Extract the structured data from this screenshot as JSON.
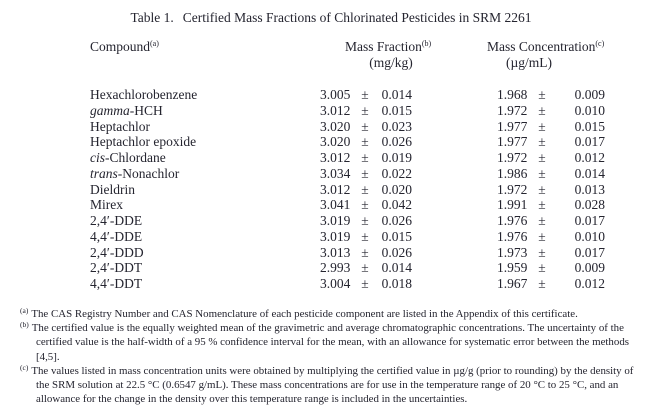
{
  "title": {
    "label": "Table 1.",
    "text": "Certified Mass Fractions of Chlorinated Pesticides in SRM 2261"
  },
  "columns": {
    "compound": {
      "label": "Compound",
      "sup": "(a)"
    },
    "mass_fraction": {
      "label": "Mass Fraction",
      "sup": "(b)",
      "unit": "(mg/kg)"
    },
    "mass_concentration": {
      "label": "Mass Concentration",
      "sup": "(c)",
      "unit": "(µg/mL)"
    }
  },
  "plus_minus": "±",
  "rows": [
    {
      "italic": "",
      "name": "Hexachlorobenzene",
      "mass_fraction": "3.005",
      "mass_fraction_unc": "0.014",
      "mass_concentration": "1.968",
      "mass_concentration_unc": "0.009"
    },
    {
      "italic": "gamma",
      "name": "-HCH",
      "mass_fraction": "3.012",
      "mass_fraction_unc": "0.015",
      "mass_concentration": "1.972",
      "mass_concentration_unc": "0.010"
    },
    {
      "italic": "",
      "name": "Heptachlor",
      "mass_fraction": "3.020",
      "mass_fraction_unc": "0.023",
      "mass_concentration": "1.977",
      "mass_concentration_unc": "0.015"
    },
    {
      "italic": "",
      "name": "Heptachlor epoxide",
      "mass_fraction": "3.020",
      "mass_fraction_unc": "0.026",
      "mass_concentration": "1.977",
      "mass_concentration_unc": "0.017"
    },
    {
      "italic": "cis",
      "name": "-Chlordane",
      "mass_fraction": "3.012",
      "mass_fraction_unc": "0.019",
      "mass_concentration": "1.972",
      "mass_concentration_unc": "0.012"
    },
    {
      "italic": "trans",
      "name": "-Nonachlor",
      "mass_fraction": "3.034",
      "mass_fraction_unc": "0.022",
      "mass_concentration": "1.986",
      "mass_concentration_unc": "0.014"
    },
    {
      "italic": "",
      "name": "Dieldrin",
      "mass_fraction": "3.012",
      "mass_fraction_unc": "0.020",
      "mass_concentration": "1.972",
      "mass_concentration_unc": "0.013"
    },
    {
      "italic": "",
      "name": "Mirex",
      "mass_fraction": "3.041",
      "mass_fraction_unc": "0.042",
      "mass_concentration": "1.991",
      "mass_concentration_unc": "0.028"
    },
    {
      "italic": "",
      "name": "2,4′-DDE",
      "mass_fraction": "3.019",
      "mass_fraction_unc": "0.026",
      "mass_concentration": "1.976",
      "mass_concentration_unc": "0.017"
    },
    {
      "italic": "",
      "name": "4,4′-DDE",
      "mass_fraction": "3.019",
      "mass_fraction_unc": "0.015",
      "mass_concentration": "1.976",
      "mass_concentration_unc": "0.010"
    },
    {
      "italic": "",
      "name": "2,4′-DDD",
      "mass_fraction": "3.013",
      "mass_fraction_unc": "0.026",
      "mass_concentration": "1.973",
      "mass_concentration_unc": "0.017"
    },
    {
      "italic": "",
      "name": "2,4′-DDT",
      "mass_fraction": "2.993",
      "mass_fraction_unc": "0.014",
      "mass_concentration": "1.959",
      "mass_concentration_unc": "0.009"
    },
    {
      "italic": "",
      "name": "4,4′-DDT",
      "mass_fraction": "3.004",
      "mass_fraction_unc": "0.018",
      "mass_concentration": "1.967",
      "mass_concentration_unc": "0.012"
    }
  ],
  "footnotes": [
    {
      "marker": "(a)",
      "text": "The CAS Registry Number and CAS Nomenclature of each pesticide component are listed in the Appendix of this certificate."
    },
    {
      "marker": "(b)",
      "text": "The certified value is the equally weighted mean of the gravimetric and average chromatographic concentrations. The uncertainty of the certified value is the half-width of a 95 % confidence interval for the mean, with an allowance for systematic error between the methods [4,5]."
    },
    {
      "marker": "(c)",
      "text": "The values listed in mass concentration units were obtained by multiplying the certified value in µg/g (prior to rounding) by the density of the SRM solution at 22.5 °C (0.6547 g/mL).  These mass concentrations are for use in the temperature range of 20 °C to 25 °C, and an allowance for the change in the density over this temperature range is included in the uncertainties."
    }
  ]
}
